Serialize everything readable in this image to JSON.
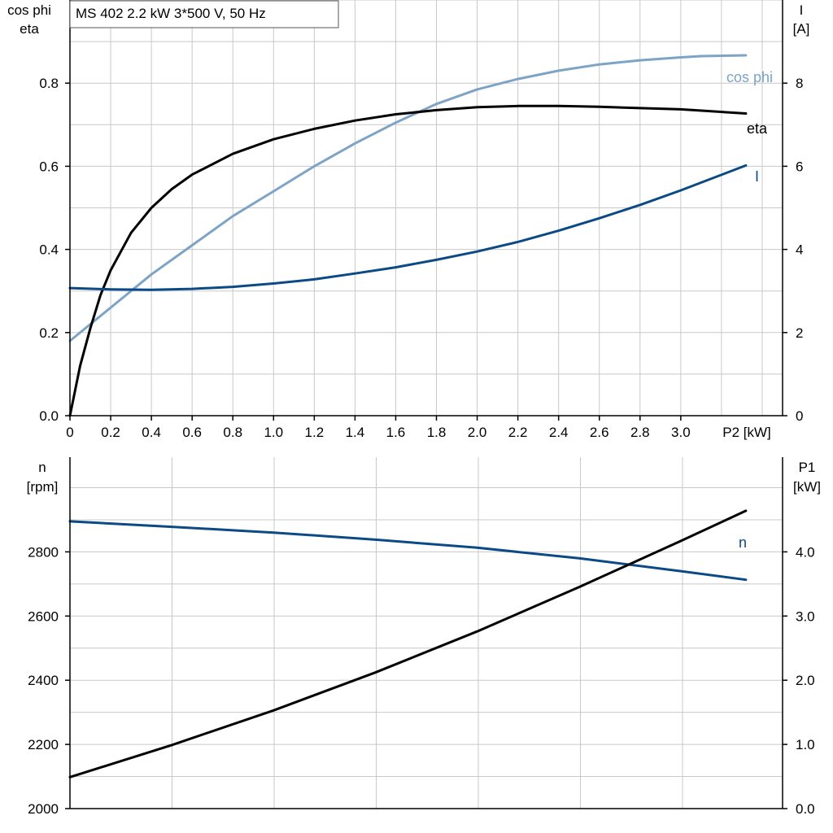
{
  "colors": {
    "dark_blue": "#0b4a85",
    "light_blue": "#7da3c6",
    "black": "#000000",
    "grid": "#c8c8c8"
  },
  "chart_data": [
    {
      "type": "line",
      "title": "MS 402   2.2 kW   3*500 V, 50 Hz",
      "x_label": "P2 [kW]",
      "x_ticks": [
        "0",
        "0.2",
        "0.4",
        "0.6",
        "0.8",
        "1.0",
        "1.2",
        "1.4",
        "1.6",
        "1.8",
        "2.0",
        "2.2",
        "2.4",
        "2.6",
        "2.8",
        "3.0"
      ],
      "xlim": [
        0,
        3.5
      ],
      "y_left_label_line1": "cos phi",
      "y_left_label_line2": "eta",
      "y_left_ticks": [
        "0.0",
        "0.2",
        "0.4",
        "0.6",
        "0.8"
      ],
      "y_left_lim": [
        0,
        1.0
      ],
      "y_right_label_line1": "I",
      "y_right_label_line2": "[A]",
      "y_right_ticks": [
        "0",
        "2",
        "4",
        "6",
        "8"
      ],
      "y_right_lim": [
        0,
        10
      ],
      "series": [
        {
          "name": "cos phi",
          "axis": "left",
          "color": "light_blue",
          "x": [
            0,
            0.2,
            0.4,
            0.6,
            0.8,
            1.0,
            1.2,
            1.4,
            1.6,
            1.8,
            2.0,
            2.2,
            2.4,
            2.6,
            2.8,
            3.0,
            3.1,
            3.32
          ],
          "y": [
            0.18,
            0.26,
            0.34,
            0.41,
            0.48,
            0.54,
            0.6,
            0.655,
            0.705,
            0.75,
            0.785,
            0.81,
            0.83,
            0.845,
            0.855,
            0.862,
            0.865,
            0.867
          ]
        },
        {
          "name": "eta",
          "axis": "left",
          "color": "black",
          "x": [
            0,
            0.05,
            0.1,
            0.15,
            0.2,
            0.3,
            0.4,
            0.5,
            0.6,
            0.8,
            1.0,
            1.2,
            1.4,
            1.6,
            1.8,
            2.0,
            2.2,
            2.4,
            2.6,
            2.8,
            3.0,
            3.32
          ],
          "y": [
            0.0,
            0.12,
            0.21,
            0.29,
            0.35,
            0.44,
            0.5,
            0.545,
            0.58,
            0.63,
            0.665,
            0.69,
            0.71,
            0.725,
            0.735,
            0.742,
            0.745,
            0.745,
            0.743,
            0.74,
            0.737,
            0.727
          ]
        },
        {
          "name": "I",
          "axis": "right",
          "color": "dark_blue",
          "x": [
            0,
            0.2,
            0.4,
            0.6,
            0.8,
            1.0,
            1.2,
            1.4,
            1.6,
            1.8,
            2.0,
            2.2,
            2.4,
            2.6,
            2.8,
            3.0,
            3.32
          ],
          "y": [
            3.07,
            3.04,
            3.03,
            3.05,
            3.1,
            3.18,
            3.28,
            3.42,
            3.57,
            3.75,
            3.95,
            4.18,
            4.45,
            4.75,
            5.07,
            5.42,
            6.02
          ]
        }
      ]
    },
    {
      "type": "line",
      "y_left_label_line1": "n",
      "y_left_label_line2": "[rpm]",
      "y_left_ticks": [
        "2000",
        "2200",
        "2400",
        "2600",
        "2800"
      ],
      "y_left_lim": [
        2000,
        3000
      ],
      "y_right_label_line1": "P1",
      "y_right_label_line2": "[kW]",
      "y_right_ticks": [
        "0.0",
        "1.0",
        "2.0",
        "3.0",
        "4.0"
      ],
      "y_right_lim": [
        0,
        5.0
      ],
      "xlim": [
        0,
        3.5
      ],
      "series": [
        {
          "name": "n",
          "axis": "left",
          "color": "dark_blue",
          "x": [
            0,
            0.5,
            1.0,
            1.5,
            2.0,
            2.5,
            3.0,
            3.32
          ],
          "y": [
            2895,
            2878,
            2860,
            2838,
            2813,
            2780,
            2740,
            2713
          ]
        },
        {
          "axis": "right",
          "color": "black",
          "x": [
            0,
            0.5,
            1.0,
            1.5,
            2.0,
            2.5,
            3.0,
            3.32
          ],
          "y": [
            0.49,
            0.99,
            1.53,
            2.12,
            2.76,
            3.45,
            4.17,
            4.64
          ]
        }
      ]
    }
  ]
}
